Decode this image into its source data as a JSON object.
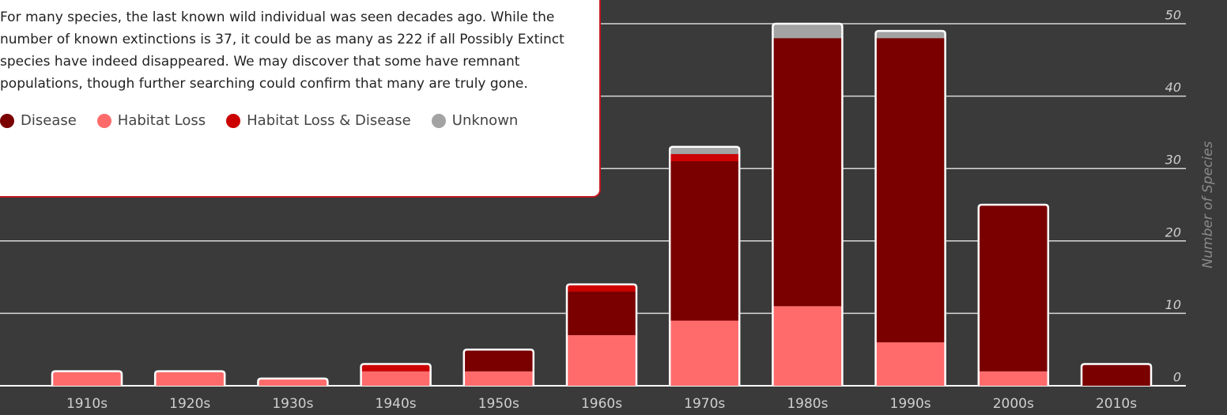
{
  "chart_data": {
    "type": "stacked_bar",
    "annotation": "For many species, the last known wild individual was seen decades ago. While the number of known extinctions is 37, it could be as many as 222 if all Possibly Extinct species have indeed disappeared. We may discover that some have remnant populations, though further searching could confirm that many are truly gone.",
    "y_label": "Number of Species",
    "categories": [
      "1910s",
      "1920s",
      "1930s",
      "1940s",
      "1950s",
      "1960s",
      "1970s",
      "1980s",
      "1990s",
      "2000s",
      "2010s"
    ],
    "series": [
      {
        "name": "Habitat Loss",
        "color": "#ff6b6b",
        "values": [
          2,
          2,
          1,
          2,
          2,
          7,
          9,
          11,
          6,
          2,
          0
        ]
      },
      {
        "name": "Disease",
        "color": "#7a0000",
        "values": [
          0,
          0,
          0,
          0,
          3,
          6,
          22,
          37,
          42,
          23,
          3
        ]
      },
      {
        "name": "Habitat Loss & Disease",
        "color": "#cc0000",
        "values": [
          0,
          0,
          0,
          1,
          0,
          1,
          1,
          0,
          0,
          0,
          0
        ]
      },
      {
        "name": "Unknown",
        "color": "#a3a3a3",
        "values": [
          0,
          0,
          0,
          0,
          0,
          0,
          1,
          2,
          1,
          0,
          0
        ]
      }
    ],
    "legend_order": [
      "Disease",
      "Habitat Loss",
      "Habitat Loss & Disease",
      "Unknown"
    ],
    "ylim": [
      0,
      50
    ],
    "yticks": [
      0,
      10,
      20,
      30,
      40,
      50
    ],
    "grid": true
  }
}
